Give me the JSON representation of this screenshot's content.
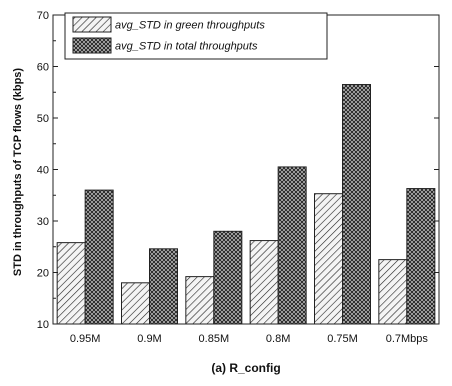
{
  "chart_data": {
    "type": "bar",
    "title": "",
    "xlabel": "(a) R_config",
    "ylabel": "STD in throughputs of TCP flows (kbps)",
    "categories": [
      "0.95M",
      "0.9M",
      "0.85M",
      "0.8M",
      "0.75M",
      "0.7Mbps"
    ],
    "ylim": [
      10,
      70
    ],
    "yticks": [
      10,
      20,
      30,
      40,
      50,
      60,
      70
    ],
    "series": [
      {
        "name": "avg_STD in green throughputs",
        "pattern": "diagonal-hatch",
        "values": [
          25.8,
          18.0,
          19.2,
          26.2,
          35.3,
          22.5
        ]
      },
      {
        "name": "avg_STD in total throughputs",
        "pattern": "crosshatch",
        "values": [
          36.0,
          24.6,
          28.0,
          40.5,
          56.5,
          36.3
        ]
      }
    ],
    "legend_placement": "top-left",
    "grid": false
  }
}
